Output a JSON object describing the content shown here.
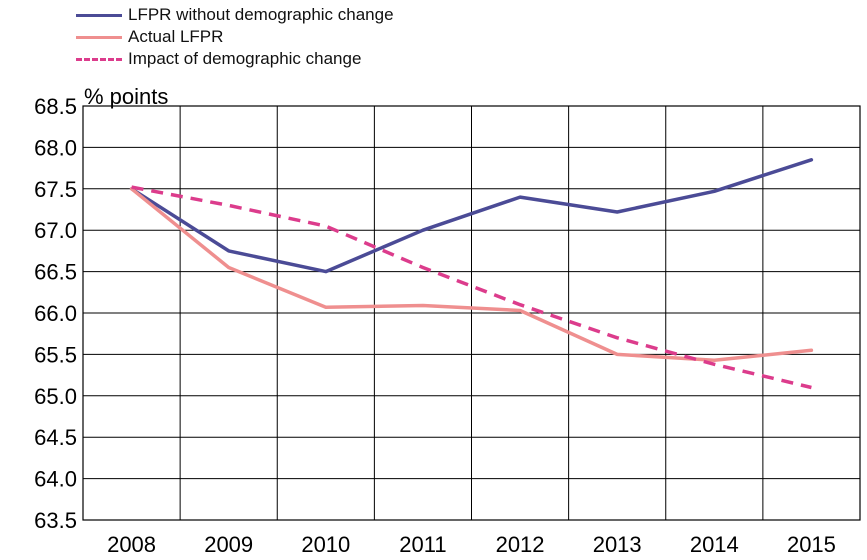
{
  "chart_data": {
    "type": "line",
    "ylabel": "% points",
    "x": [
      "2008",
      "2009",
      "2010",
      "2011",
      "2012",
      "2013",
      "2014",
      "2015"
    ],
    "ylim": [
      63.5,
      68.5
    ],
    "yticks": [
      "68.5",
      "68.0",
      "67.5",
      "67.0",
      "66.5",
      "66.0",
      "65.5",
      "65.0",
      "64.5",
      "64.0",
      "63.5"
    ],
    "grid": true,
    "legend_position": "top-left",
    "series": [
      {
        "name": "LFPR without demographic change",
        "color": "#4b4b96",
        "dash": "solid",
        "values": [
          67.5,
          66.75,
          66.5,
          67.0,
          67.4,
          67.22,
          67.47,
          67.85
        ]
      },
      {
        "name": "Actual LFPR",
        "color": "#ef8f8f",
        "dash": "solid",
        "values": [
          67.5,
          66.55,
          66.07,
          66.09,
          66.03,
          65.5,
          65.43,
          65.55
        ]
      },
      {
        "name": "Impact of demographic change",
        "color": "#dc3c8c",
        "dash": "dashed",
        "values": [
          67.52,
          67.3,
          67.05,
          66.55,
          66.1,
          65.7,
          65.38,
          65.1
        ]
      }
    ]
  }
}
